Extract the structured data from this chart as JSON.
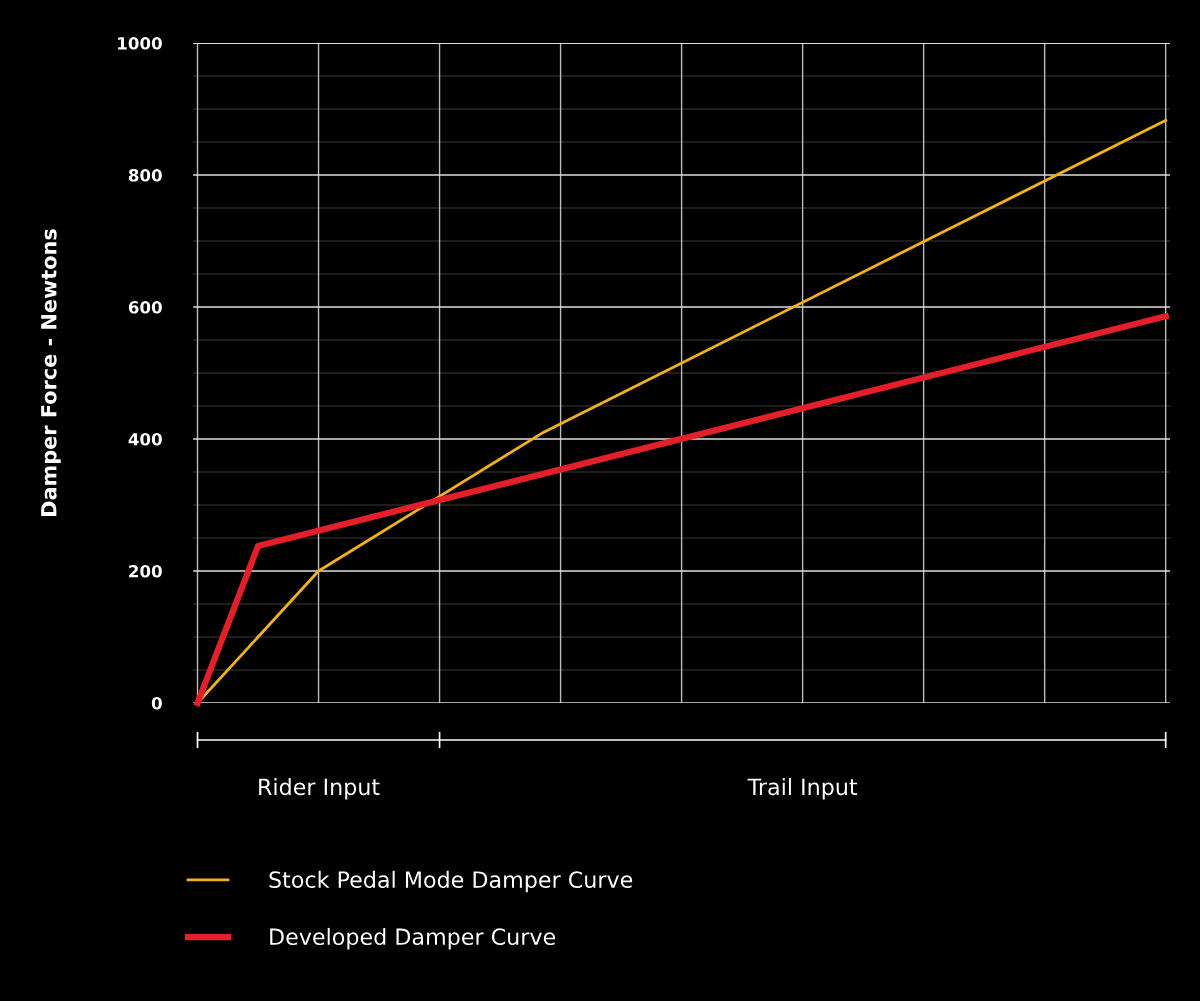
{
  "chart_data": {
    "type": "line",
    "ylabel": "Damper Force - Newtons",
    "categories": [
      null,
      null,
      null,
      null,
      null,
      null,
      null,
      null,
      null,
      null,
      null,
      null,
      null,
      null,
      null,
      null,
      null,
      null,
      null,
      null,
      null,
      null,
      null,
      null,
      null,
      null,
      null,
      null,
      null,
      null,
      null,
      null,
      null,
      null,
      null,
      null,
      null,
      null,
      null,
      null,
      null,
      null,
      null,
      null,
      null,
      null,
      null,
      null,
      null,
      null,
      null,
      null,
      null,
      null,
      null,
      null,
      null,
      null,
      null,
      null,
      null,
      null,
      null,
      null,
      null,
      null,
      null,
      null,
      null,
      null,
      null,
      null,
      null,
      null,
      null,
      null,
      null,
      null,
      null,
      null,
      null,
      null,
      null,
      null,
      null,
      null,
      null,
      null,
      null,
      null,
      null,
      null,
      null,
      null,
      null,
      null,
      null,
      null,
      null,
      null,
      null,
      null,
      null,
      null,
      null,
      null,
      null,
      null,
      null,
      null,
      null,
      null,
      null
    ],
    "ylim": [
      0,
      1000
    ],
    "yticks": [
      0,
      {
        "value": 50,
        "label": null
      },
      {
        "value": 100,
        "label": null
      },
      {
        "value": 150,
        "label": null
      },
      200,
      {
        "value": 250,
        "label": null
      },
      {
        "value": 300,
        "label": null
      },
      {
        "value": 350,
        "label": null
      },
      400,
      {
        "value": 450,
        "label": null
      },
      {
        "value": 500,
        "label": null
      },
      {
        "value": 550,
        "label": null
      },
      600,
      {
        "value": 650,
        "label": null
      },
      {
        "value": 700,
        "label": null
      },
      {
        "value": 750,
        "label": null
      },
      800,
      {
        "value": 850,
        "label": null
      },
      {
        "value": 900,
        "label": null
      },
      {
        "value": 950,
        "label": null
      },
      1000
    ],
    "grid": true,
    "legend": "bottom",
    "marker": "none",
    "line_style": "solid",
    "series": [
      {
        "name": "Stock Pedal Mode Damper Curve",
        "color": "#f0b21c",
        "values": [
          0,
          null,
          null,
          null,
          null,
          null,
          null,
          null,
          null,
          null,
          null,
          null,
          null,
          null,
          200,
          null,
          null,
          null,
          null,
          null,
          null,
          null,
          null,
          null,
          null,
          null,
          null,
          null,
          null,
          null,
          null,
          null,
          null,
          null,
          null,
          null,
          null,
          null,
          null,
          null,
          410,
          null,
          null,
          null,
          null,
          null,
          null,
          null,
          null,
          null,
          null,
          null,
          null,
          null,
          null,
          null,
          null,
          null,
          null,
          null,
          null,
          null,
          null,
          null,
          null,
          null,
          null,
          null,
          null,
          null,
          null,
          null,
          null,
          null,
          null,
          null,
          null,
          null,
          null,
          null,
          null,
          null,
          null,
          null,
          null,
          null,
          null,
          null,
          null,
          null,
          null,
          null,
          null,
          null,
          null,
          null,
          null,
          null,
          null,
          null,
          null,
          null,
          null,
          null,
          null,
          null,
          null,
          null,
          null,
          null,
          null,
          null,
          883
        ]
      },
      {
        "name": "Developed Damper Curve",
        "color": "#e3202a",
        "values": [
          0,
          null,
          null,
          null,
          null,
          null,
          null,
          238,
          null,
          null,
          null,
          null,
          null,
          null,
          null,
          null,
          null,
          null,
          null,
          null,
          null,
          null,
          null,
          null,
          null,
          null,
          null,
          null,
          null,
          null,
          null,
          null,
          null,
          null,
          null,
          null,
          null,
          null,
          null,
          null,
          null,
          null,
          null,
          null,
          null,
          null,
          null,
          null,
          null,
          null,
          null,
          null,
          null,
          null,
          null,
          null,
          null,
          null,
          null,
          null,
          null,
          null,
          null,
          null,
          null,
          null,
          null,
          null,
          null,
          null,
          null,
          null,
          null,
          null,
          null,
          null,
          null,
          null,
          null,
          null,
          null,
          null,
          null,
          null,
          null,
          null,
          null,
          null,
          null,
          null,
          null,
          null,
          null,
          null,
          null,
          null,
          null,
          null,
          null,
          null,
          null,
          null,
          null,
          null,
          null,
          null,
          null,
          null,
          null,
          null,
          null,
          null,
          586
        ]
      }
    ],
    "annotations": [
      "Rider Input",
      "Trail Input"
    ]
  }
}
